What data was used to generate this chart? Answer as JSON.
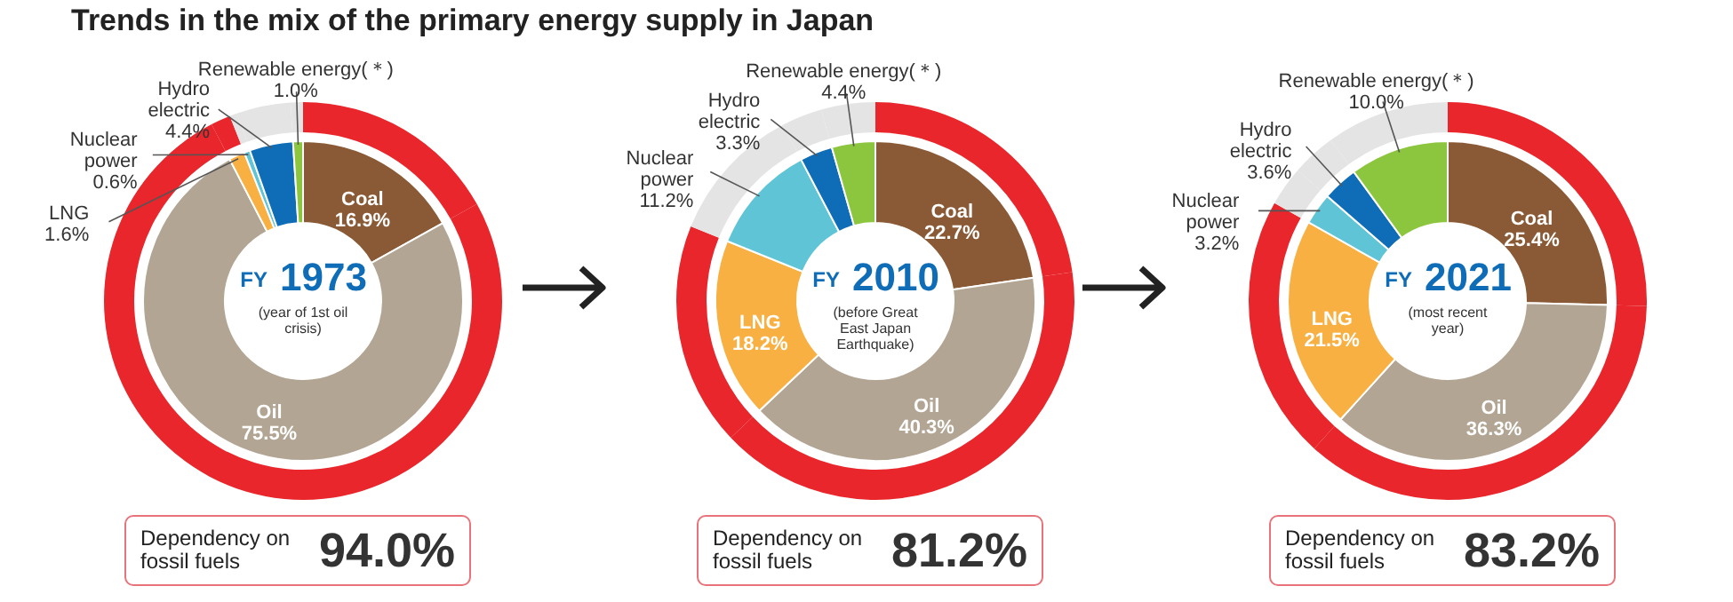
{
  "chart_data": [
    {
      "type": "donut",
      "title": "Trends in the mix of the primary energy supply in Japan",
      "categories": [
        "Coal",
        "Oil",
        "LNG",
        "Nuclear power",
        "Hydro electric",
        "Renewable energy(＊)"
      ],
      "series": [
        {
          "values": [
            16.9,
            75.5,
            1.6,
            0.6,
            4.4,
            1.0
          ],
          "colors": [
            "#8a5a36",
            "#b2a593",
            "#f9b042",
            "#5ec4d6",
            "#0f6cb6",
            "#8cc63e"
          ],
          "value_labels": [
            "16.9%",
            "75.5%",
            "1.6%",
            "0.6%",
            "4.4%",
            "1.0%"
          ]
        },
        {
          "values": [
            16.9,
            75.5,
            1.6,
            0.6,
            4.4,
            1.0
          ],
          "colors": [
            "#e8262b",
            "#e8262b",
            "#e8262b",
            "#e4e4e4",
            "#e4e4e4",
            "#e4e4e4"
          ]
        }
      ],
      "totals": [
        "94.0%"
      ],
      "annotations": [
        "FY 1973",
        "(year of 1st oil crisis)",
        "Dependency on fossil fuels"
      ]
    },
    {
      "type": "donut",
      "categories": [
        "Coal",
        "Oil",
        "LNG",
        "Nuclear power",
        "Hydro electric",
        "Renewable energy(＊)"
      ],
      "series": [
        {
          "values": [
            22.7,
            40.3,
            18.2,
            11.2,
            3.3,
            4.4
          ],
          "colors": [
            "#8a5a36",
            "#b2a593",
            "#f9b042",
            "#5ec4d6",
            "#0f6cb6",
            "#8cc63e"
          ],
          "value_labels": [
            "22.7%",
            "40.3%",
            "18.2%",
            "11.2%",
            "3.3%",
            "4.4%"
          ]
        },
        {
          "values": [
            22.7,
            40.3,
            18.2,
            11.2,
            3.3,
            4.4
          ],
          "colors": [
            "#e8262b",
            "#e8262b",
            "#e8262b",
            "#e4e4e4",
            "#e4e4e4",
            "#e4e4e4"
          ]
        }
      ],
      "totals": [
        "81.2%"
      ],
      "annotations": [
        "FY 2010",
        "(before Great East Japan Earthquake)",
        "Dependency on fossil fuels"
      ]
    },
    {
      "type": "donut",
      "categories": [
        "Coal",
        "Oil",
        "LNG",
        "Nuclear power",
        "Hydro electric",
        "Renewable energy(＊)"
      ],
      "series": [
        {
          "values": [
            25.4,
            36.3,
            21.5,
            3.2,
            3.6,
            10.0
          ],
          "colors": [
            "#8a5a36",
            "#b2a593",
            "#f9b042",
            "#5ec4d6",
            "#0f6cb6",
            "#8cc63e"
          ],
          "value_labels": [
            "25.4%",
            "36.3%",
            "21.5%",
            "3.2%",
            "3.6%",
            "10.0%"
          ]
        },
        {
          "values": [
            25.4,
            36.3,
            21.5,
            3.2,
            3.6,
            10.0
          ],
          "colors": [
            "#e8262b",
            "#e8262b",
            "#e8262b",
            "#e4e4e4",
            "#e4e4e4",
            "#e4e4e4"
          ]
        }
      ],
      "totals": [
        "83.2%"
      ],
      "annotations": [
        "FY 2021",
        "(most recent year)",
        "Dependency on fossil fuels"
      ]
    }
  ]
}
